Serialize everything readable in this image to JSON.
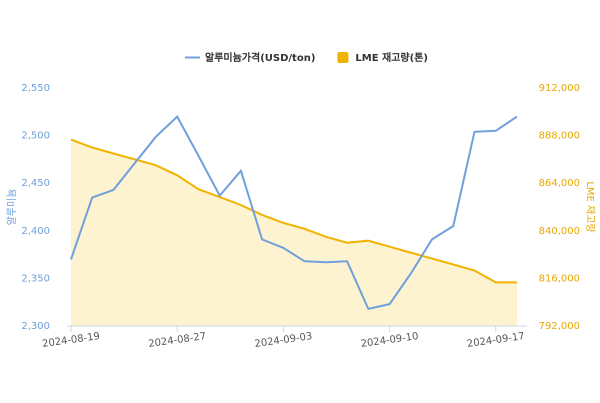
{
  "chart_data": {
    "type": "line",
    "legend": "top",
    "y_label": "알루미늄",
    "y2_label": "LME 재고량",
    "categories": [
      "2024-08-19",
      null,
      null,
      null,
      null,
      "2024-08-27",
      null,
      null,
      null,
      null,
      "2024-09-03",
      null,
      null,
      null,
      null,
      "2024-09-10",
      null,
      null,
      null,
      null,
      "2024-09-17",
      null
    ],
    "series": [
      {
        "name": "알루미늄가격(USD/ton)",
        "type": "line",
        "color": "#6fa0dc",
        "axis": "y",
        "values": [
          2370,
          2435,
          2443,
          2471,
          2499,
          2520,
          2479,
          2437,
          2463,
          2391,
          2382,
          2368,
          2367,
          2368,
          2318,
          2323,
          2355,
          2391,
          2405,
          2504,
          2505,
          2520
        ]
      },
      {
        "name": "LME 재고량(톤)",
        "type": "area",
        "color": "#f0b400",
        "fill": "#fdf3d0",
        "axis": "y2",
        "values": [
          886000,
          882000,
          879000,
          876000,
          873000,
          868000,
          861000,
          857000,
          853000,
          848000,
          844000,
          841000,
          837000,
          834000,
          835000,
          832000,
          829000,
          826000,
          823000,
          820000,
          814000,
          814000
        ]
      }
    ],
    "ylim": [
      2300,
      2550
    ],
    "yticks": [
      {
        "value": 2300,
        "label": "2,300"
      },
      {
        "value": 2350,
        "label": "2,350"
      },
      {
        "value": 2400,
        "label": "2,400"
      },
      {
        "value": 2450,
        "label": "2,450"
      },
      {
        "value": 2500,
        "label": "2,500"
      },
      {
        "value": 2550,
        "label": "2,550"
      }
    ],
    "y2lim": [
      792000,
      912000
    ],
    "y2ticks": [
      {
        "value": 792000,
        "label": "792,000"
      },
      {
        "value": 816000,
        "label": "816,000"
      },
      {
        "value": 840000,
        "label": "840,000"
      },
      {
        "value": 864000,
        "label": "864,000"
      },
      {
        "value": 888000,
        "label": "888,000"
      },
      {
        "value": 912000,
        "label": "912,000"
      }
    ]
  }
}
